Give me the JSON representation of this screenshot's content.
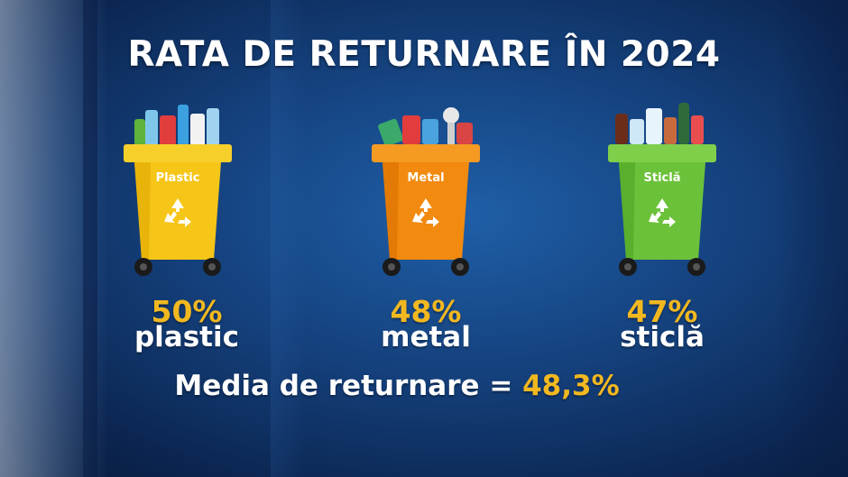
{
  "title": "RATA DE RETURNARE ÎN 2024",
  "bins": [
    {
      "label": "Plastic",
      "percent": "50%",
      "name": "plastic",
      "color": "#f5c518",
      "shade": "#e0a800",
      "lid": "#f7cf2a"
    },
    {
      "label": "Metal",
      "percent": "48%",
      "name": "metal",
      "color": "#f28a0f",
      "shade": "#d86f00",
      "lid": "#f59a22"
    },
    {
      "label": "Sticlă",
      "percent": "47%",
      "name": "sticlă",
      "color": "#6cc13a",
      "shade": "#4ea525",
      "lid": "#7fcf4a"
    }
  ],
  "average": {
    "label": "Media de returnare = ",
    "value": "48,3%"
  },
  "colors": {
    "accent": "#f2b820",
    "text": "#ffffff",
    "background": "#143f7a"
  },
  "icons": [
    "recycle-icon"
  ]
}
